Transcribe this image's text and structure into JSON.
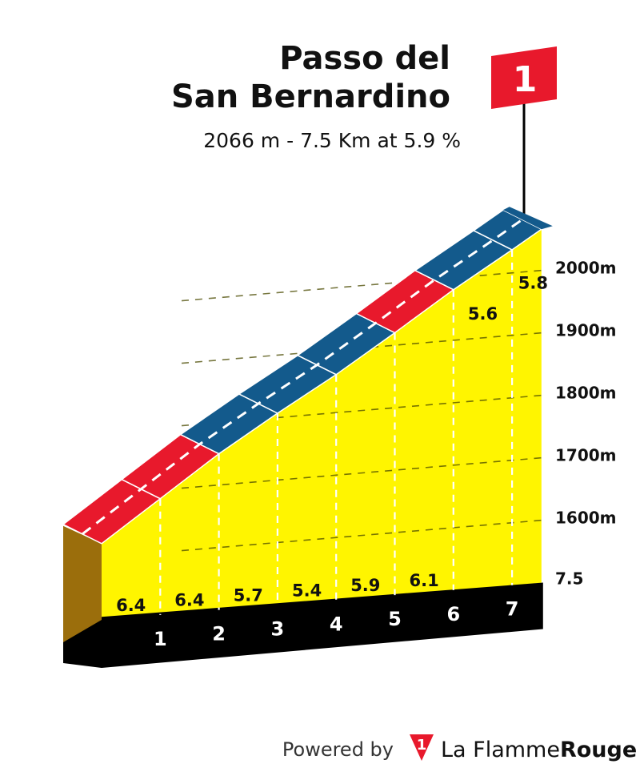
{
  "chart_data": {
    "type": "area",
    "title_lines": [
      "Passo del",
      "San Bernardino"
    ],
    "subtitle": "2066 m - 7.5 Km at 5.9 %",
    "summit_flag": "1",
    "distance_end_label": "7.5",
    "km_markers": [
      "1",
      "2",
      "3",
      "4",
      "5",
      "6",
      "7"
    ],
    "altitude_ticks": [
      {
        "label": "1600m",
        "value": 1600
      },
      {
        "label": "1700m",
        "value": 1700
      },
      {
        "label": "1800m",
        "value": 1800
      },
      {
        "label": "1900m",
        "value": 1900
      },
      {
        "label": "2000m",
        "value": 2000
      }
    ],
    "segments": [
      {
        "from_km": 0,
        "to_km": 1,
        "gradient": 6.4,
        "label": "6.4",
        "color": "#e8192c"
      },
      {
        "from_km": 1,
        "to_km": 2,
        "gradient": 6.4,
        "label": "6.4",
        "color": "#e8192c"
      },
      {
        "from_km": 2,
        "to_km": 3,
        "gradient": 5.7,
        "label": "5.7",
        "color": "#135a8c"
      },
      {
        "from_km": 3,
        "to_km": 4,
        "gradient": 5.4,
        "label": "5.4",
        "color": "#135a8c"
      },
      {
        "from_km": 4,
        "to_km": 5,
        "gradient": 5.9,
        "label": "5.9",
        "color": "#135a8c"
      },
      {
        "from_km": 5,
        "to_km": 6,
        "gradient": 6.1,
        "label": "6.1",
        "color": "#e8192c"
      },
      {
        "from_km": 6,
        "to_km": 7,
        "gradient": 5.6,
        "label": "5.6",
        "color": "#135a8c"
      },
      {
        "from_km": 7,
        "to_km": 7.5,
        "gradient": 5.8,
        "label": "5.8",
        "color": "#135a8c"
      }
    ],
    "altitude_range": [
      1500,
      2066
    ],
    "colors": {
      "profile_fill": "#fff500",
      "base_band": "#000000",
      "start_side": "#9b6e0c",
      "flag": "#e8192c",
      "red_segment": "#e8192c",
      "blue_segment": "#135a8c"
    }
  },
  "footer": {
    "powered_by": "Powered by",
    "logo_number": "1",
    "brand_prefix": "La Flamme",
    "brand_suffix": "Rouge"
  }
}
